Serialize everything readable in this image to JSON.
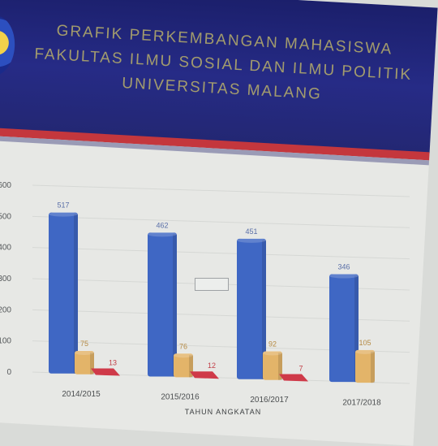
{
  "banner": {
    "line1": "GRAFIK PERKEMBANGAN MAHASISWA",
    "line2": "FAKULTAS ILMU SOSIAL DAN ILMU POLITIK",
    "line3": "UNIVERSITAS MALANG",
    "colors": {
      "background": "#232773",
      "stripe": "#c4373d",
      "text": "#b9b06a"
    }
  },
  "legend": {
    "label": "",
    "position": "center"
  },
  "chart_data": {
    "type": "bar",
    "title": "GRAFIK PERKEMBANGAN MAHASISWA",
    "xlabel": "TAHUN ANGKATAN",
    "ylabel": "",
    "ylim": [
      0,
      600
    ],
    "yticks": [
      0,
      100,
      200,
      300,
      400,
      500,
      600
    ],
    "ytick_labels": [
      "0",
      "100",
      "200",
      "300",
      "400",
      "500",
      "600"
    ],
    "grid": true,
    "categories": [
      "2014/2015",
      "2015/2016",
      "2016/2017",
      "2017/2018"
    ],
    "series": [
      {
        "values": [
          517,
          462,
          451,
          346
        ],
        "color": "#3f67c4"
      },
      {
        "values": [
          75,
          76,
          92,
          105
        ],
        "color": "#e3b469"
      },
      {
        "values": [
          13,
          12,
          7,
          null
        ],
        "color": "#cf3a49"
      }
    ],
    "value_labels": [
      [
        "517",
        "75",
        "13"
      ],
      [
        "462",
        "76",
        "12"
      ],
      [
        "451",
        "92",
        "7"
      ],
      [
        "346",
        "105",
        ""
      ]
    ]
  }
}
